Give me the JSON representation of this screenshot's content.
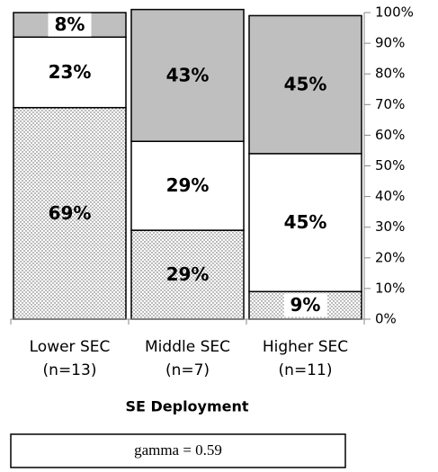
{
  "chart_data": {
    "type": "stacked_bar_100",
    "categories": [
      [
        "Lower SEC",
        "(n=13)"
      ],
      [
        "Middle SEC",
        "(n=7)"
      ],
      [
        "Higher SEC",
        "(n=11)"
      ]
    ],
    "series": [
      {
        "color": "#ffffff",
        "pattern": "dots",
        "values": [
          69,
          29,
          9
        ],
        "value_labels": [
          "69%",
          "29%",
          "9%"
        ]
      },
      {
        "color": "#ffffff",
        "values": [
          23,
          29,
          45
        ],
        "value_labels": [
          "23%",
          "29%",
          "45%"
        ]
      },
      {
        "color": "#bfbfbf",
        "values": [
          8,
          43,
          45
        ],
        "value_labels": [
          "8%",
          "43%",
          "45%"
        ]
      }
    ],
    "xlabel": "SE Deployment",
    "annotation": "gamma = 0.59",
    "ylim": [
      0,
      100
    ],
    "yticks": [
      {
        "value": 0,
        "label": "0%"
      },
      {
        "value": 10,
        "label": "10%"
      },
      {
        "value": 20,
        "label": "20%"
      },
      {
        "value": 30,
        "label": "30%"
      },
      {
        "value": 40,
        "label": "40%"
      },
      {
        "value": 50,
        "label": "50%"
      },
      {
        "value": 60,
        "label": "60%"
      },
      {
        "value": 70,
        "label": "70%"
      },
      {
        "value": 80,
        "label": "80%"
      },
      {
        "value": 90,
        "label": "90%"
      },
      {
        "value": 100,
        "label": "100%"
      }
    ],
    "y_axis_side": "right"
  }
}
